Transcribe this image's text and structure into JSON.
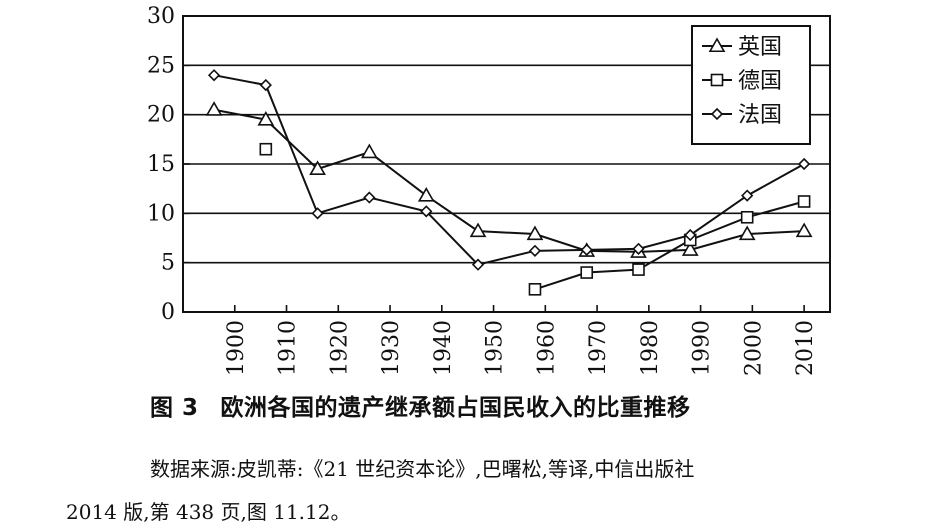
{
  "chart_data": {
    "type": "line",
    "title": "",
    "xlabel": "",
    "ylabel": "",
    "xlim": [
      1890,
      2015
    ],
    "ylim": [
      0,
      30
    ],
    "x_ticks": [
      1900,
      1910,
      1920,
      1930,
      1940,
      1950,
      1960,
      1970,
      1980,
      1990,
      2000,
      2010
    ],
    "y_ticks": [
      0,
      5,
      10,
      15,
      20,
      25,
      30
    ],
    "gridlines_y": [
      5,
      10,
      15,
      20,
      25
    ],
    "legend_position": "top-right",
    "series": [
      {
        "name": "英国",
        "marker": "triangle",
        "points": [
          {
            "x": 1896,
            "y": 20.5
          },
          {
            "x": 1906,
            "y": 19.5
          },
          {
            "x": 1916,
            "y": 14.5
          },
          {
            "x": 1926,
            "y": 16.2
          },
          {
            "x": 1937,
            "y": 11.8
          },
          {
            "x": 1947,
            "y": 8.2
          },
          {
            "x": 1958,
            "y": 7.9
          },
          {
            "x": 1968,
            "y": 6.2
          },
          {
            "x": 1978,
            "y": 6.1
          },
          {
            "x": 1988,
            "y": 6.3
          },
          {
            "x": 1999,
            "y": 7.9
          },
          {
            "x": 2010,
            "y": 8.2
          }
        ]
      },
      {
        "name": "德国",
        "marker": "square",
        "points": [
          {
            "x": 1906,
            "y": 16.5
          },
          {
            "x": 1958,
            "y": 2.3
          },
          {
            "x": 1968,
            "y": 4.0
          },
          {
            "x": 1978,
            "y": 4.3
          },
          {
            "x": 1988,
            "y": 7.3
          },
          {
            "x": 1999,
            "y": 9.6
          },
          {
            "x": 2010,
            "y": 11.2
          }
        ],
        "connect_from_index": 1
      },
      {
        "name": "法国",
        "marker": "diamond",
        "points": [
          {
            "x": 1896,
            "y": 24.0
          },
          {
            "x": 1906,
            "y": 23.0
          },
          {
            "x": 1916,
            "y": 10.0
          },
          {
            "x": 1926,
            "y": 11.6
          },
          {
            "x": 1937,
            "y": 10.2
          },
          {
            "x": 1947,
            "y": 4.8
          },
          {
            "x": 1958,
            "y": 6.2
          },
          {
            "x": 1968,
            "y": 6.3
          },
          {
            "x": 1978,
            "y": 6.4
          },
          {
            "x": 1988,
            "y": 7.8
          },
          {
            "x": 1999,
            "y": 11.8
          },
          {
            "x": 2010,
            "y": 15.0
          }
        ]
      }
    ]
  },
  "caption": {
    "figure_number": "图 3",
    "title": "欧洲各国的遗产继承额占国民收入的比重推移"
  },
  "source": {
    "line1": "数据来源:皮凯蒂:《21 世纪资本论》,巴曙松,等译,中信出版社",
    "line2": "2014 版,第 438 页,图 11.12。"
  }
}
